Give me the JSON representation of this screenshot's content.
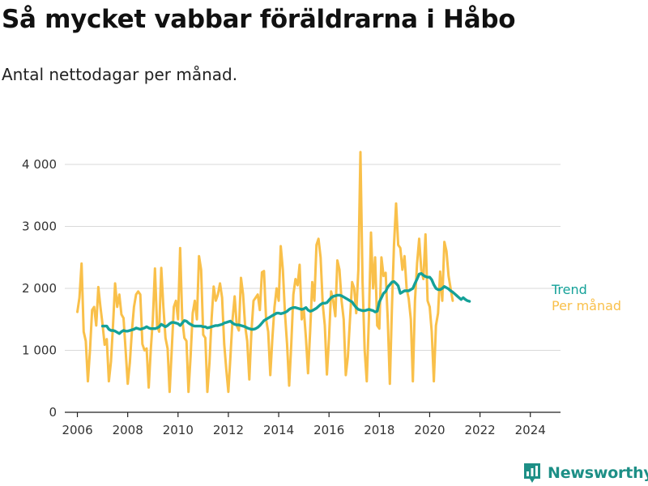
{
  "chart_data": {
    "type": "line",
    "title": "Så mycket vabbar föräldrarna i Håbo",
    "subtitle": "Antal nettodagar per månad.",
    "xlabel": "",
    "ylabel": "",
    "xlim": [
      2005.5,
      2025.2
    ],
    "ylim": [
      0,
      4300
    ],
    "x_ticks": [
      2006,
      2008,
      2010,
      2012,
      2014,
      2016,
      2018,
      2020,
      2022,
      2024
    ],
    "x_tick_labels": [
      "2006",
      "2008",
      "2010",
      "2012",
      "2014",
      "2016",
      "2018",
      "2020",
      "2022",
      "2024"
    ],
    "y_ticks": [
      0,
      1000,
      2000,
      3000,
      4000
    ],
    "y_tick_labels": [
      "0",
      "1 000",
      "2 000",
      "3 000",
      "4 000"
    ],
    "grid": "horizontal",
    "monthly_start": [
      2006,
      1
    ],
    "series": [
      {
        "name": "Per månad",
        "color": "#f9c04a",
        "values": [
          1620,
          1850,
          2400,
          1300,
          1150,
          500,
          1000,
          1650,
          1700,
          1400,
          2020,
          1700,
          1420,
          1090,
          1180,
          500,
          820,
          1400,
          2080,
          1700,
          1900,
          1580,
          1520,
          1000,
          460,
          800,
          1300,
          1700,
          1900,
          1950,
          1900,
          1100,
          1000,
          1030,
          400,
          1000,
          1500,
          2320,
          1400,
          1300,
          2330,
          1700,
          1200,
          1030,
          330,
          1000,
          1700,
          1800,
          1500,
          2650,
          1500,
          1200,
          1150,
          330,
          900,
          1600,
          1800,
          1500,
          2520,
          2300,
          1250,
          1200,
          330,
          800,
          1500,
          2030,
          1800,
          1900,
          2080,
          1850,
          1100,
          700,
          330,
          900,
          1500,
          1870,
          1400,
          1320,
          2170,
          1900,
          1400,
          1150,
          530,
          1300,
          1800,
          1850,
          1900,
          1650,
          2260,
          2280,
          1500,
          1300,
          600,
          1200,
          1700,
          2000,
          1800,
          2680,
          2300,
          1600,
          1100,
          430,
          1100,
          1900,
          2150,
          2050,
          2380,
          1500,
          1650,
          1200,
          630,
          1300,
          2100,
          1800,
          2700,
          2800,
          2500,
          1750,
          1400,
          610,
          1200,
          1950,
          1800,
          1550,
          2450,
          2300,
          1800,
          1500,
          600,
          900,
          1500,
          2100,
          2000,
          1600,
          2300,
          4200,
          2100,
          1000,
          500,
          1500,
          2900,
          2000,
          2500,
          1400,
          1350,
          2500,
          2200,
          2250,
          1500,
          460,
          1700,
          2700,
          3370,
          2700,
          2650,
          2300,
          2520,
          2000,
          1830,
          1500,
          500,
          1800,
          2400,
          2800,
          2300,
          2150,
          2870,
          1800,
          1700,
          1300,
          500,
          1400,
          1600,
          2270,
          1800,
          2750,
          2600,
          2200,
          2000,
          1800
        ]
      },
      {
        "name": "Trend",
        "color": "#14a198",
        "values": [
          1390,
          1390,
          1390,
          1340,
          1320,
          1320,
          1310,
          1290,
          1270,
          1300,
          1320,
          1310,
          1310,
          1320,
          1330,
          1340,
          1360,
          1350,
          1340,
          1350,
          1360,
          1380,
          1360,
          1350,
          1350,
          1350,
          1360,
          1380,
          1420,
          1400,
          1380,
          1400,
          1430,
          1450,
          1450,
          1440,
          1430,
          1400,
          1440,
          1480,
          1470,
          1440,
          1420,
          1400,
          1390,
          1390,
          1390,
          1390,
          1380,
          1380,
          1360,
          1370,
          1380,
          1390,
          1400,
          1400,
          1410,
          1420,
          1440,
          1450,
          1460,
          1470,
          1440,
          1420,
          1410,
          1410,
          1400,
          1390,
          1380,
          1360,
          1350,
          1340,
          1340,
          1350,
          1370,
          1400,
          1440,
          1480,
          1500,
          1520,
          1540,
          1560,
          1580,
          1600,
          1600,
          1590,
          1600,
          1610,
          1630,
          1660,
          1680,
          1690,
          1690,
          1680,
          1670,
          1660,
          1670,
          1690,
          1650,
          1630,
          1640,
          1660,
          1680,
          1710,
          1740,
          1760,
          1760,
          1770,
          1810,
          1850,
          1870,
          1880,
          1890,
          1890,
          1880,
          1860,
          1840,
          1820,
          1800,
          1780,
          1730,
          1690,
          1660,
          1650,
          1640,
          1640,
          1650,
          1660,
          1650,
          1640,
          1620,
          1630,
          1780,
          1850,
          1920,
          1950,
          2020,
          2060,
          2100,
          2110,
          2080,
          2040,
          1920,
          1940,
          1960,
          1960,
          1960,
          1980,
          2000,
          2080,
          2150,
          2230,
          2240,
          2210,
          2190,
          2180,
          2180,
          2140,
          2060,
          2000,
          1980,
          1980,
          2000,
          2030,
          2010,
          1990,
          1960,
          1940,
          1910,
          1880,
          1850,
          1820,
          1850,
          1820,
          1800,
          1790
        ]
      }
    ],
    "trend_start": [
      2007,
      1
    ]
  },
  "legend": {
    "trend_label": "Trend",
    "monthly_label": "Per månad"
  },
  "brand": {
    "name": "Newsworthy",
    "color": "#1d8f86"
  }
}
